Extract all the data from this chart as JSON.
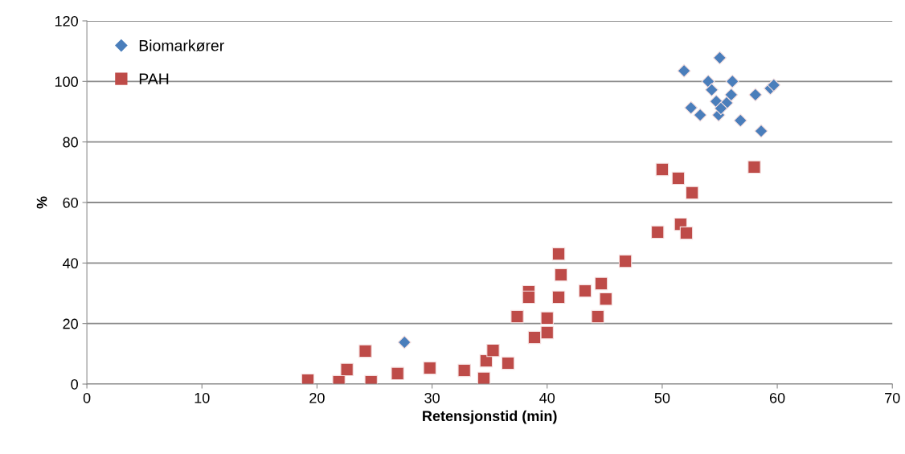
{
  "chart_data": {
    "type": "scatter",
    "xlabel": "Retensjonstid (min)",
    "ylabel": "%",
    "xlim": [
      0,
      70
    ],
    "xticks": [
      0,
      10,
      20,
      30,
      40,
      50,
      60,
      70
    ],
    "ylim": [
      0,
      120
    ],
    "yticks": [
      0,
      20,
      40,
      60,
      80,
      100,
      120
    ],
    "grid": "y",
    "legend": "top left",
    "series": [
      {
        "name": "Biomarkører",
        "color": "#4a7ebb",
        "marker": "diamond",
        "x": [
          27.6,
          51.9,
          55.0,
          54.0,
          56.1,
          54.3,
          52.5,
          53.3,
          54.9,
          54.7,
          55.6,
          56.0,
          55.1,
          56.8,
          58.1,
          58.6,
          59.4,
          59.7
        ],
        "values": [
          13.8,
          103.5,
          107.8,
          100,
          100,
          97.2,
          91.3,
          88.9,
          88.9,
          93.4,
          92.9,
          95.6,
          91.1,
          87.1,
          95.6,
          83.6,
          97.7,
          98.8
        ]
      },
      {
        "name": "PAH",
        "color": "#be4b48",
        "marker": "square",
        "x": [
          19.2,
          21.9,
          22.6,
          24.2,
          24.7,
          27.0,
          29.8,
          32.8,
          34.5,
          34.7,
          35.3,
          36.6,
          37.4,
          38.9,
          50.0,
          51.4,
          52.6,
          49.6,
          51.6,
          52.1,
          41.0,
          41.2,
          46.8,
          38.4,
          38.4,
          41.0,
          43.3,
          44.7,
          45.1,
          40.0,
          44.4,
          40.0,
          58.0
        ],
        "values": [
          1.3,
          0.8,
          4.8,
          10.9,
          0.8,
          3.5,
          5.3,
          4.5,
          1.9,
          7.7,
          11.1,
          6.9,
          22.3,
          15.4,
          70.9,
          68.0,
          63.2,
          50.2,
          52.8,
          49.9,
          43.0,
          36.1,
          40.6,
          30.5,
          28.7,
          28.7,
          30.8,
          33.2,
          28.1,
          21.8,
          22.3,
          17.0,
          71.7
        ]
      }
    ]
  }
}
